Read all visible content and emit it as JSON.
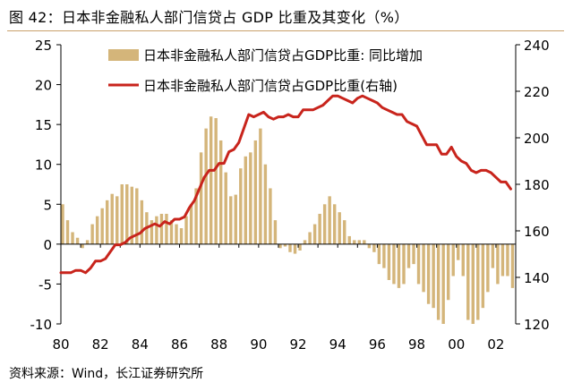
{
  "header": {
    "figure_label": "图 42：",
    "title": "日本非金融私人部门信贷占 GDP 比重及其变化（%）"
  },
  "footer": {
    "source": "资料来源：Wind，长江证券研究所"
  },
  "colors": {
    "bar": "#d4b57a",
    "line": "#c8241c",
    "axis": "#000000",
    "rule": "#c9a06b"
  },
  "chart_data": {
    "type": "bar",
    "combo": "bar + line on secondary axis",
    "x_tick_labels": [
      "80",
      "82",
      "84",
      "86",
      "88",
      "90",
      "92",
      "94",
      "96",
      "98",
      "00",
      "02"
    ],
    "x_range": [
      1980,
      2003
    ],
    "y_left_range": [
      -10,
      25
    ],
    "y_left_ticks": [
      -10,
      -5,
      0,
      5,
      10,
      15,
      20,
      25
    ],
    "y_left_tick_labels": [
      "-10",
      "-5",
      "0",
      "5",
      "10",
      "15",
      "20",
      "25"
    ],
    "y_right_range": [
      120,
      240
    ],
    "y_right_ticks": [
      120,
      140,
      160,
      180,
      200,
      220,
      240
    ],
    "y_right_tick_labels": [
      "120",
      "140",
      "160",
      "180",
      "200",
      "220",
      "240"
    ],
    "legend_position": "top",
    "grid": false,
    "series": [
      {
        "name": "日本非金融私人部门信贷占GDP比重: 同比增加",
        "type": "bar",
        "axis": "left",
        "x": [
          1980.0,
          1980.25,
          1980.5,
          1980.75,
          1981.0,
          1981.25,
          1981.5,
          1981.75,
          1982.0,
          1982.25,
          1982.5,
          1982.75,
          1983.0,
          1983.25,
          1983.5,
          1983.75,
          1984.0,
          1984.25,
          1984.5,
          1984.75,
          1985.0,
          1985.25,
          1985.5,
          1985.75,
          1986.0,
          1986.25,
          1986.5,
          1986.75,
          1987.0,
          1987.25,
          1987.5,
          1987.75,
          1988.0,
          1988.25,
          1988.5,
          1988.75,
          1989.0,
          1989.25,
          1989.5,
          1989.75,
          1990.0,
          1990.25,
          1990.5,
          1990.75,
          1991.0,
          1991.25,
          1991.5,
          1991.75,
          1992.0,
          1992.25,
          1992.5,
          1992.75,
          1993.0,
          1993.25,
          1993.5,
          1993.75,
          1994.0,
          1994.25,
          1994.5,
          1994.75,
          1995.0,
          1995.25,
          1995.5,
          1995.75,
          1996.0,
          1996.25,
          1996.5,
          1996.75,
          1997.0,
          1997.25,
          1997.5,
          1997.75,
          1998.0,
          1998.25,
          1998.5,
          1998.75,
          1999.0,
          1999.25,
          1999.5,
          1999.75,
          2000.0,
          2000.25,
          2000.5,
          2000.75,
          2001.0,
          2001.25,
          2001.5,
          2001.75,
          2002.0,
          2002.25,
          2002.5,
          2002.75
        ],
        "values": [
          5.0,
          3.0,
          1.5,
          0.8,
          -0.5,
          0.5,
          2.5,
          3.5,
          4.5,
          5.5,
          6.3,
          6.0,
          7.5,
          7.5,
          7.2,
          7.0,
          5.5,
          4.0,
          3.0,
          3.5,
          3.8,
          3.8,
          3.0,
          2.5,
          2.0,
          3.5,
          5.0,
          7.0,
          11.5,
          14.5,
          16.0,
          15.8,
          13.0,
          9.0,
          6.0,
          6.2,
          9.5,
          11.0,
          11.5,
          13.0,
          14.5,
          10.0,
          7.0,
          3.0,
          -0.5,
          -0.3,
          -1.0,
          -1.2,
          -0.8,
          0.5,
          1.5,
          2.5,
          3.8,
          5.0,
          6.0,
          5.0,
          4.0,
          3.0,
          1.0,
          0.5,
          0.5,
          0.5,
          -0.5,
          -1.0,
          -2.5,
          -3.0,
          -4.5,
          -5.0,
          -5.5,
          -5.0,
          -3.0,
          -2.5,
          -5.0,
          -6.0,
          -7.5,
          -8.0,
          -9.5,
          -10.0,
          -7.0,
          -4.0,
          -2.0,
          -4.0,
          -9.5,
          -10.0,
          -9.5,
          -8.0,
          -6.0,
          -3.0,
          -5.0,
          -4.0,
          -4.0,
          -5.5
        ]
      },
      {
        "name": "日本非金融私人部门信贷占GDP比重(右轴)",
        "type": "line",
        "axis": "right",
        "x": [
          1980.0,
          1980.25,
          1980.5,
          1980.75,
          1981.0,
          1981.25,
          1981.5,
          1981.75,
          1982.0,
          1982.25,
          1982.5,
          1982.75,
          1983.0,
          1983.25,
          1983.5,
          1983.75,
          1984.0,
          1984.25,
          1984.5,
          1984.75,
          1985.0,
          1985.25,
          1985.5,
          1985.75,
          1986.0,
          1986.25,
          1986.5,
          1986.75,
          1987.0,
          1987.25,
          1987.5,
          1987.75,
          1988.0,
          1988.25,
          1988.5,
          1988.75,
          1989.0,
          1989.25,
          1989.5,
          1989.75,
          1990.0,
          1990.25,
          1990.5,
          1990.75,
          1991.0,
          1991.25,
          1991.5,
          1991.75,
          1992.0,
          1992.25,
          1992.5,
          1992.75,
          1993.0,
          1993.25,
          1993.5,
          1993.75,
          1994.0,
          1994.25,
          1994.5,
          1994.75,
          1995.0,
          1995.25,
          1995.5,
          1995.75,
          1996.0,
          1996.25,
          1996.5,
          1996.75,
          1997.0,
          1997.25,
          1997.5,
          1997.75,
          1998.0,
          1998.25,
          1998.5,
          1998.75,
          1999.0,
          1999.25,
          1999.5,
          1999.75,
          2000.0,
          2000.25,
          2000.5,
          2000.75,
          2001.0,
          2001.25,
          2001.5,
          2001.75,
          2002.0,
          2002.25,
          2002.5,
          2002.75
        ],
        "values": [
          142,
          142,
          142,
          143,
          143,
          142,
          144,
          147,
          147,
          148,
          151,
          154,
          154,
          155,
          157,
          158,
          159,
          161,
          162,
          163,
          162,
          164,
          163,
          165,
          165,
          166,
          170,
          173,
          178,
          183,
          186,
          186,
          189,
          189,
          194,
          195,
          198,
          204,
          210,
          209,
          210,
          211,
          209,
          208,
          209,
          209,
          210,
          209,
          209,
          212,
          212,
          212,
          213,
          214,
          216,
          218,
          218,
          217,
          216,
          215,
          217,
          218,
          217,
          216,
          215,
          213,
          212,
          211,
          210,
          210,
          207,
          206,
          205,
          201,
          197,
          197,
          197,
          193,
          193,
          196,
          192,
          190,
          189,
          186,
          185,
          186,
          186,
          185,
          183,
          181,
          181,
          178
        ]
      }
    ]
  }
}
